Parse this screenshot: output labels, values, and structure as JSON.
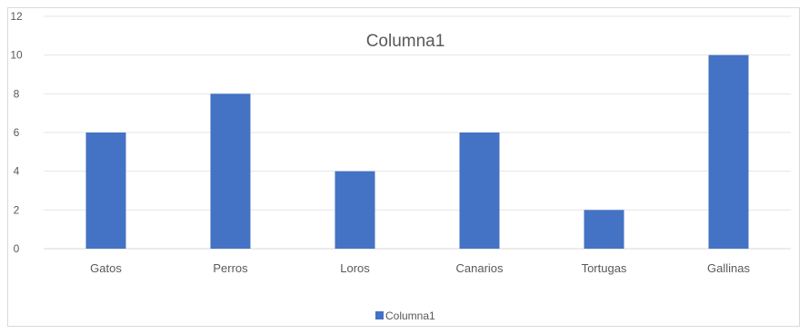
{
  "chart_data": {
    "type": "bar",
    "title": "Columna1",
    "categories": [
      "Gatos",
      "Perros",
      "Loros",
      "Canarios",
      "Tortugas",
      "Gallinas"
    ],
    "series": [
      {
        "name": "Columna1",
        "values": [
          6,
          8,
          4,
          6,
          2,
          10
        ],
        "color": "#4472c4"
      }
    ],
    "xlabel": "",
    "ylabel": "",
    "ylim": [
      0,
      12
    ],
    "yticks": [
      0,
      2,
      4,
      6,
      8,
      10,
      12
    ],
    "grid": true,
    "legend": "bottom"
  }
}
